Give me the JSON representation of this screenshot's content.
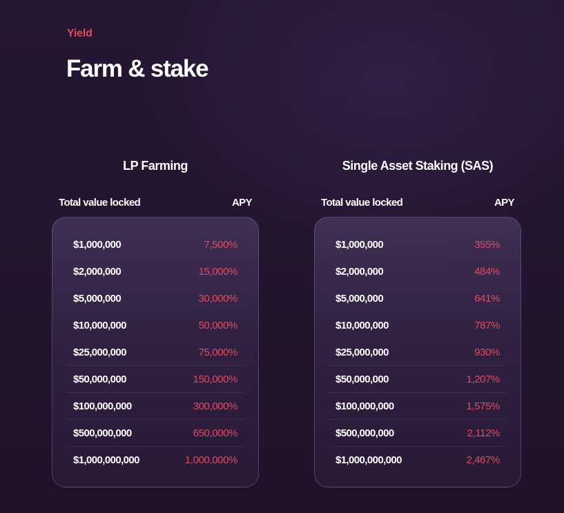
{
  "header": {
    "eyebrow": "Yield",
    "title": "Farm & stake"
  },
  "colors": {
    "accent": "#e04a62",
    "background": "#22152f",
    "card": "#3c2b52"
  },
  "lp_farming": {
    "title": "LP Farming",
    "col_tvl": "Total value locked",
    "col_apy": "APY",
    "rows": [
      {
        "tvl": "$1,000,000",
        "apy": "7,500%"
      },
      {
        "tvl": "$2,000,000",
        "apy": "15,000%"
      },
      {
        "tvl": "$5,000,000",
        "apy": "30,000%"
      },
      {
        "tvl": "$10,000,000",
        "apy": "50,000%"
      },
      {
        "tvl": "$25,000,000",
        "apy": "75,000%"
      },
      {
        "tvl": "$50,000,000",
        "apy": "150,000%"
      },
      {
        "tvl": "$100,000,000",
        "apy": "300,000%"
      },
      {
        "tvl": "$500,000,000",
        "apy": "650,000%"
      },
      {
        "tvl": "$1,000,000,000",
        "apy": "1,000,000%"
      }
    ]
  },
  "sas": {
    "title": "Single Asset Staking (SAS)",
    "col_tvl": "Total value locked",
    "col_apy": "APY",
    "rows": [
      {
        "tvl": "$1,000,000",
        "apy": "355%"
      },
      {
        "tvl": "$2,000,000",
        "apy": "484%"
      },
      {
        "tvl": "$5,000,000",
        "apy": "641%"
      },
      {
        "tvl": "$10,000,000",
        "apy": "787%"
      },
      {
        "tvl": "$25,000,000",
        "apy": "930%"
      },
      {
        "tvl": "$50,000,000",
        "apy": "1,207%"
      },
      {
        "tvl": "$100,000,000",
        "apy": "1,575%"
      },
      {
        "tvl": "$500,000,000",
        "apy": "2,112%"
      },
      {
        "tvl": "$1,000,000,000",
        "apy": "2,467%"
      }
    ]
  }
}
